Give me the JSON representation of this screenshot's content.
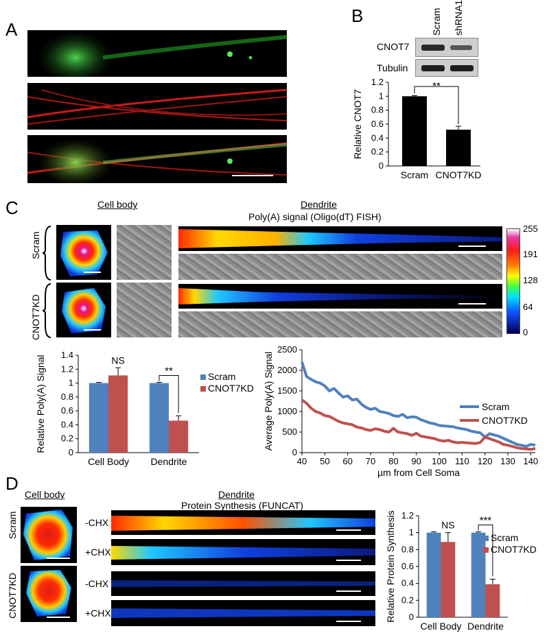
{
  "panels": {
    "A": {
      "label": "A"
    },
    "B": {
      "label": "B",
      "lanes": [
        "Scram",
        "shRNA1"
      ],
      "blots": [
        "CNOT7",
        "Tubulin"
      ],
      "significance": "**"
    },
    "C": {
      "label": "C",
      "cell_body_header": "Cell body",
      "dendrite_header": "Dendrite",
      "dendrite_subtitle": "Poly(A) signal (Oligo(dT) FISH)",
      "rows": [
        "Scram",
        "CNOT7KD"
      ],
      "colorbar_ticks": [
        "255",
        "191",
        "128",
        "64",
        "0"
      ],
      "bar_sig_ns": "NS",
      "bar_sig_dendrite": "**"
    },
    "D": {
      "label": "D",
      "cell_body_header": "Cell body",
      "dendrite_header": "Dendrite",
      "dendrite_subtitle": "Protein Synthesis (FUNCAT)",
      "rows": [
        "Scram",
        "CNOT7KD"
      ],
      "conditions": [
        "-CHX",
        "+CHX",
        "-CHX",
        "+CHX"
      ],
      "bar_sig_ns": "NS",
      "bar_sig_dendrite": "***"
    }
  },
  "chart_data": [
    {
      "id": "B_bar",
      "type": "bar",
      "title": "",
      "xlabel": "",
      "ylabel": "Relative CNOT7",
      "categories": [
        "Scram",
        "CNOT7KD"
      ],
      "values": [
        1.0,
        0.52
      ],
      "errors": [
        0.01,
        0.05
      ],
      "ylim": [
        0,
        1.2
      ],
      "yticks": [
        "0",
        "0.2",
        "0.4",
        "0.6",
        "0.8",
        "1",
        "1.2"
      ],
      "colors": [
        "#000000",
        "#000000"
      ]
    },
    {
      "id": "C_bar",
      "type": "bar",
      "ylabel": "Relative Poly(A) Signal",
      "categories": [
        "Cell Body",
        "Dendrite"
      ],
      "series": [
        {
          "name": "Scram",
          "values": [
            1.0,
            1.0
          ],
          "errors": [
            0.01,
            0.01
          ],
          "color": "#4f81bd"
        },
        {
          "name": "CNOT7KD",
          "values": [
            1.11,
            0.46
          ],
          "errors": [
            0.11,
            0.07
          ],
          "color": "#c0504d"
        }
      ],
      "ylim": [
        0,
        1.4
      ],
      "yticks": [
        "0",
        "0.2",
        "0.4",
        "0.6",
        "0.8",
        "1",
        "1.2",
        "1.4"
      ]
    },
    {
      "id": "C_line",
      "type": "line",
      "xlabel": "µm from Cell Soma",
      "ylabel": "Average Poly(A) Signal",
      "xlim": [
        40,
        142
      ],
      "ylim": [
        0,
        2500
      ],
      "xticks": [
        "40",
        "50",
        "60",
        "70",
        "80",
        "90",
        "100",
        "110",
        "120",
        "130",
        "140"
      ],
      "yticks": [
        "0",
        "500",
        "1000",
        "1500",
        "2000",
        "2500"
      ],
      "series": [
        {
          "name": "Scram",
          "color": "#4f81bd",
          "x": [
            40,
            42,
            44,
            46,
            48,
            50,
            52,
            54,
            56,
            58,
            60,
            62,
            64,
            66,
            68,
            70,
            72,
            74,
            76,
            78,
            80,
            82,
            84,
            86,
            88,
            90,
            92,
            94,
            96,
            98,
            100,
            102,
            104,
            106,
            108,
            110,
            112,
            114,
            116,
            118,
            120,
            122,
            124,
            126,
            128,
            130,
            132,
            134,
            136,
            138,
            140,
            142
          ],
          "y": [
            2200,
            1850,
            1780,
            1720,
            1690,
            1620,
            1500,
            1560,
            1450,
            1350,
            1380,
            1280,
            1300,
            1180,
            1100,
            1050,
            1080,
            1000,
            980,
            950,
            900,
            880,
            930,
            850,
            870,
            860,
            800,
            760,
            720,
            700,
            660,
            650,
            640,
            630,
            600,
            580,
            560,
            520,
            500,
            480,
            380,
            460,
            430,
            400,
            350,
            300,
            250,
            200,
            180,
            150,
            200,
            180
          ]
        },
        {
          "name": "CNOT7KD",
          "color": "#c0504d",
          "x": [
            40,
            42,
            44,
            46,
            48,
            50,
            52,
            54,
            56,
            58,
            60,
            62,
            64,
            66,
            68,
            70,
            72,
            74,
            76,
            78,
            80,
            82,
            84,
            86,
            88,
            90,
            92,
            94,
            96,
            98,
            100,
            102,
            104,
            106,
            108,
            110,
            112,
            114,
            116,
            118,
            120,
            122,
            124,
            126,
            128,
            130,
            132,
            134,
            136,
            138,
            140,
            142
          ],
          "y": [
            1280,
            1200,
            1080,
            1000,
            960,
            900,
            880,
            820,
            760,
            720,
            700,
            680,
            620,
            600,
            560,
            540,
            580,
            560,
            520,
            500,
            590,
            500,
            480,
            460,
            420,
            470,
            400,
            380,
            360,
            340,
            300,
            280,
            300,
            260,
            240,
            250,
            240,
            230,
            220,
            250,
            380,
            340,
            300,
            260,
            200,
            180,
            150,
            120,
            100,
            90,
            80,
            100
          ]
        }
      ]
    },
    {
      "id": "D_bar",
      "type": "bar",
      "ylabel": "Relative Protein Synthesis",
      "categories": [
        "Cell Body",
        "Dendrite"
      ],
      "series": [
        {
          "name": "Scram",
          "values": [
            1.0,
            1.0
          ],
          "errors": [
            0.01,
            0.01
          ],
          "color": "#4f81bd"
        },
        {
          "name": "CNOT7KD",
          "values": [
            0.89,
            0.39
          ],
          "errors": [
            0.11,
            0.06
          ],
          "color": "#c0504d"
        }
      ],
      "ylim": [
        0,
        1.2
      ],
      "yticks": [
        "0",
        "0.2",
        "0.4",
        "0.6",
        "0.8",
        "1",
        "1.2"
      ]
    }
  ]
}
